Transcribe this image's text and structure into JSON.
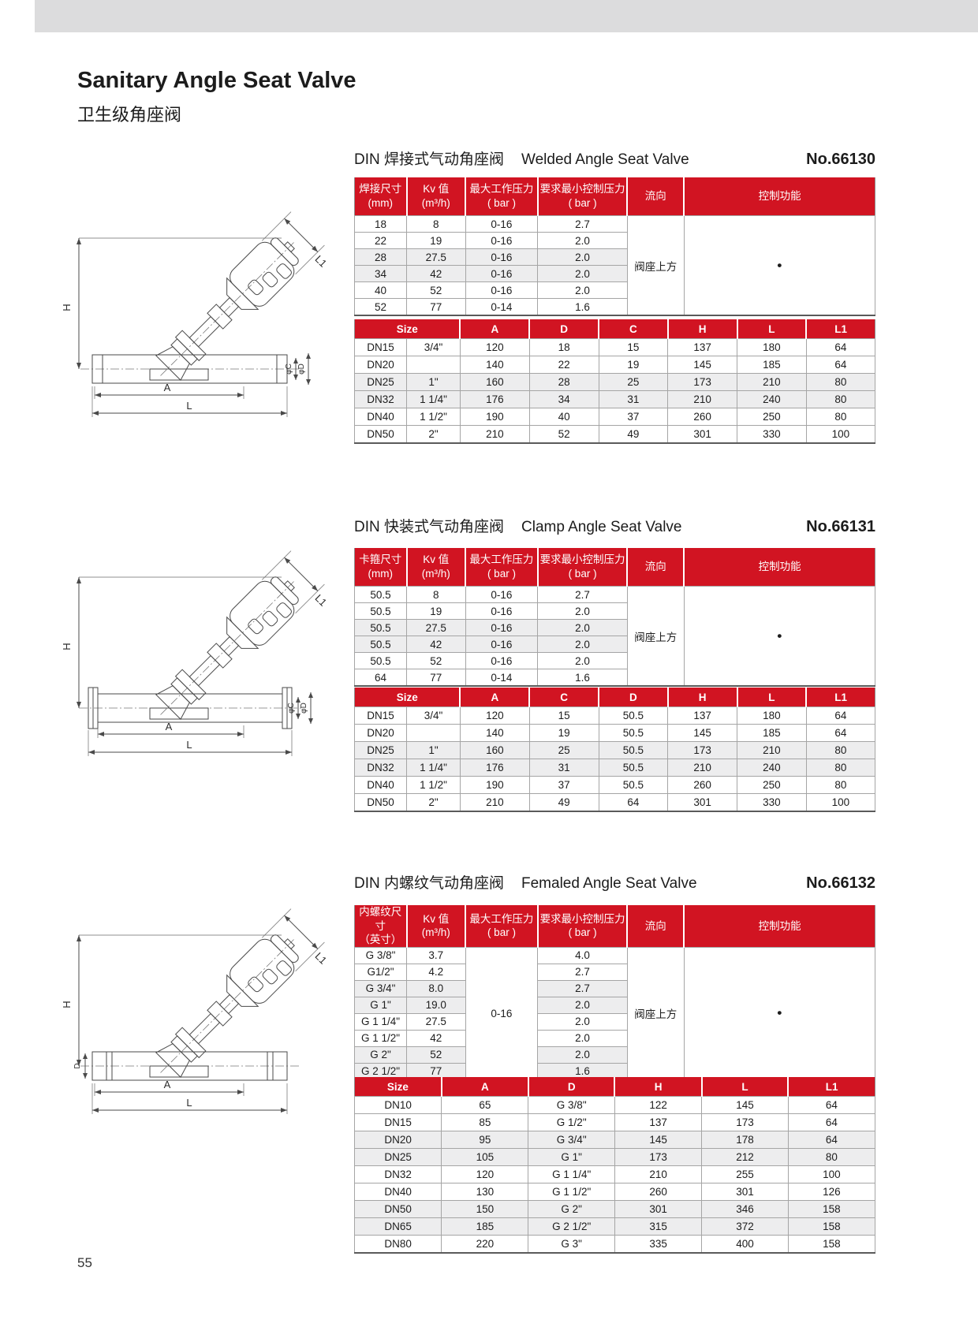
{
  "colors": {
    "accent": "#d11422",
    "topbar": "#dcdcdd",
    "row_shade": "#ededee"
  },
  "page": {
    "title_en": "Sanitary Angle Seat Valve",
    "title_zh": "卫生级角座阀",
    "number": "55"
  },
  "sections": [
    {
      "title_zh": "DIN 焊接式气动角座阀",
      "title_en": "Welded Angle Seat Valve",
      "model_no": "No.66130",
      "drawing": {
        "labels": {
          "h": "H",
          "a": "A",
          "l": "L",
          "l1": "L1",
          "c": "φC",
          "d": "φD"
        }
      },
      "spec_table": {
        "headers": [
          [
            "焊接尺寸",
            "(mm)"
          ],
          [
            "Kv 值",
            "(m³/h)"
          ],
          [
            "最大工作压力",
            "( bar )"
          ],
          [
            "要求最小控制压力",
            "( bar )"
          ],
          [
            "流向"
          ],
          [
            "控制功能"
          ]
        ],
        "rows": [
          [
            "18",
            "8",
            "0-16",
            "2.7"
          ],
          [
            "22",
            "19",
            "0-16",
            "2.0"
          ],
          [
            "28",
            "27.5",
            "0-16",
            "2.0"
          ],
          [
            "34",
            "42",
            "0-16",
            "2.0"
          ],
          [
            "40",
            "52",
            "0-16",
            "2.0"
          ],
          [
            "52",
            "77",
            "0-14",
            "1.6"
          ]
        ],
        "merges": [
          {
            "at": 4,
            "value": "阀座上方",
            "name": "flow-direction"
          },
          {
            "at": 5,
            "value": "•",
            "name": "control-function",
            "cls": "bullet"
          }
        ]
      },
      "dim_table": {
        "headers": [
          "Size",
          "A",
          "D",
          "C",
          "H",
          "L",
          "L1"
        ],
        "size_colspan": 2,
        "rows": [
          [
            "DN15",
            "3/4\"",
            "120",
            "18",
            "15",
            "137",
            "180",
            "64"
          ],
          [
            "DN20",
            "",
            "140",
            "22",
            "19",
            "145",
            "185",
            "64"
          ],
          [
            "DN25",
            "1\"",
            "160",
            "28",
            "25",
            "173",
            "210",
            "80"
          ],
          [
            "DN32",
            "1 1/4\"",
            "176",
            "34",
            "31",
            "210",
            "240",
            "80"
          ],
          [
            "DN40",
            "1 1/2\"",
            "190",
            "40",
            "37",
            "260",
            "250",
            "80"
          ],
          [
            "DN50",
            "2\"",
            "210",
            "52",
            "49",
            "301",
            "330",
            "100"
          ]
        ]
      }
    },
    {
      "title_zh": "DIN 快装式气动角座阀",
      "title_en": "Clamp Angle Seat Valve",
      "model_no": "No.66131",
      "drawing": {
        "labels": {
          "h": "H",
          "a": "A",
          "l": "L",
          "l1": "L1",
          "c": "φC",
          "d": "φD"
        }
      },
      "spec_table": {
        "headers": [
          [
            "卡箍尺寸",
            "(mm)"
          ],
          [
            "Kv 值",
            "(m³/h)"
          ],
          [
            "最大工作压力",
            "( bar )"
          ],
          [
            "要求最小控制压力",
            "( bar )"
          ],
          [
            "流向"
          ],
          [
            "控制功能"
          ]
        ],
        "rows": [
          [
            "50.5",
            "8",
            "0-16",
            "2.7"
          ],
          [
            "50.5",
            "19",
            "0-16",
            "2.0"
          ],
          [
            "50.5",
            "27.5",
            "0-16",
            "2.0"
          ],
          [
            "50.5",
            "42",
            "0-16",
            "2.0"
          ],
          [
            "50.5",
            "52",
            "0-16",
            "2.0"
          ],
          [
            "64",
            "77",
            "0-14",
            "1.6"
          ]
        ],
        "merges": [
          {
            "at": 4,
            "value": "阀座上方",
            "name": "flow-direction"
          },
          {
            "at": 5,
            "value": "•",
            "name": "control-function",
            "cls": "bullet"
          }
        ]
      },
      "dim_table": {
        "headers": [
          "Size",
          "A",
          "C",
          "D",
          "H",
          "L",
          "L1"
        ],
        "size_colspan": 2,
        "rows": [
          [
            "DN15",
            "3/4\"",
            "120",
            "15",
            "50.5",
            "137",
            "180",
            "64"
          ],
          [
            "DN20",
            "",
            "140",
            "19",
            "50.5",
            "145",
            "185",
            "64"
          ],
          [
            "DN25",
            "1\"",
            "160",
            "25",
            "50.5",
            "173",
            "210",
            "80"
          ],
          [
            "DN32",
            "1 1/4\"",
            "176",
            "31",
            "50.5",
            "210",
            "240",
            "80"
          ],
          [
            "DN40",
            "1 1/2\"",
            "190",
            "37",
            "50.5",
            "260",
            "250",
            "80"
          ],
          [
            "DN50",
            "2\"",
            "210",
            "49",
            "64",
            "301",
            "330",
            "100"
          ]
        ]
      }
    },
    {
      "title_zh": "DIN 内螺纹气动角座阀",
      "title_en": "Femaled Angle Seat Valve",
      "model_no": "No.66132",
      "drawing": {
        "labels": {
          "h": "H",
          "a": "A",
          "l": "L",
          "l1": "L1",
          "d": "D"
        }
      },
      "spec_table": {
        "headers": [
          [
            "内螺纹尺寸",
            "（英寸）"
          ],
          [
            "Kv 值",
            "(m³/h)"
          ],
          [
            "最大工作压力",
            "( bar )"
          ],
          [
            "要求最小控制压力",
            "( bar )"
          ],
          [
            "流向"
          ],
          [
            "控制功能"
          ]
        ],
        "rows": [
          [
            "G 3/8\"",
            "3.7",
            "4.0"
          ],
          [
            "G1/2\"",
            "4.2",
            "2.7"
          ],
          [
            "G 3/4\"",
            "8.0",
            "2.7"
          ],
          [
            "G 1\"",
            "19.0",
            "2.0"
          ],
          [
            "G 1 1/4\"",
            "27.5",
            "2.0"
          ],
          [
            "G 1 1/2\"",
            "42",
            "2.0"
          ],
          [
            "G 2\"",
            "52",
            "2.0"
          ],
          [
            "G 2 1/2\"",
            "77",
            "1.6"
          ]
        ],
        "merges": [
          {
            "at": 2,
            "value": "0-16",
            "name": "max-working-pressure"
          },
          {
            "at": 4,
            "value": "阀座上方",
            "name": "flow-direction"
          },
          {
            "at": 5,
            "value": "•",
            "name": "control-function",
            "cls": "bullet"
          }
        ]
      },
      "dim_table": {
        "headers": [
          "Size",
          "A",
          "D",
          "H",
          "L",
          "L1"
        ],
        "size_colspan": 1,
        "rows": [
          [
            "DN10",
            "65",
            "G 3/8\"",
            "122",
            "145",
            "64"
          ],
          [
            "DN15",
            "85",
            "G 1/2\"",
            "137",
            "173",
            "64"
          ],
          [
            "DN20",
            "95",
            "G 3/4\"",
            "145",
            "178",
            "64"
          ],
          [
            "DN25",
            "105",
            "G 1\"",
            "173",
            "212",
            "80"
          ],
          [
            "DN32",
            "120",
            "G 1 1/4\"",
            "210",
            "255",
            "100"
          ],
          [
            "DN40",
            "130",
            "G 1 1/2\"",
            "260",
            "301",
            "126"
          ],
          [
            "DN50",
            "150",
            "G 2\"",
            "301",
            "346",
            "158"
          ],
          [
            "DN65",
            "185",
            "G 2 1/2\"",
            "315",
            "372",
            "158"
          ],
          [
            "DN80",
            "220",
            "G 3\"",
            "335",
            "400",
            "158"
          ]
        ]
      }
    }
  ]
}
